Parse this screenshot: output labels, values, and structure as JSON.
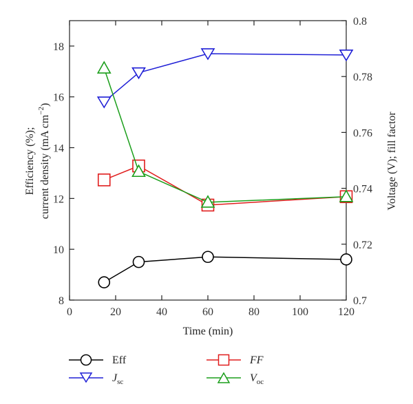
{
  "chart_data": {
    "type": "line",
    "xlabel": "Time (min)",
    "ylabel_left_line1": "Efficiency (%);",
    "ylabel_left_line2": "current density (mA cm",
    "ylabel_left_sup": "−2",
    "ylabel_left_close": ")",
    "ylabel_right": "Voltage (V); fill factor",
    "xlim": [
      0,
      120
    ],
    "ylim_left": [
      8,
      19
    ],
    "ylim_right": [
      0.7,
      0.8
    ],
    "x_ticks": [
      0,
      20,
      40,
      60,
      80,
      100,
      120
    ],
    "x_tick_labels": [
      "0",
      "20",
      "40",
      "60",
      "80",
      "100",
      "120"
    ],
    "y_left_ticks": [
      8,
      10,
      12,
      14,
      16,
      18
    ],
    "y_left_tick_labels": [
      "8",
      "10",
      "12",
      "14",
      "16",
      "18"
    ],
    "y_right_ticks": [
      0.7,
      0.72,
      0.74,
      0.76,
      0.78,
      0.8
    ],
    "y_right_tick_labels": [
      "0.7",
      "0.72",
      "0.74",
      "0.76",
      "0.78",
      "0.8"
    ],
    "grid": false,
    "legend_position": "bottom",
    "series": [
      {
        "key": "eff",
        "name": "Eff",
        "axis": "left",
        "color": "#000000",
        "marker": "circle",
        "x": [
          15,
          30,
          60,
          120
        ],
        "y": [
          8.7,
          9.5,
          9.7,
          9.6
        ]
      },
      {
        "key": "jsc",
        "name_main": "J",
        "name_sub": "sc",
        "axis": "left",
        "color": "#1f1fd6",
        "marker": "triangle-down",
        "x": [
          15,
          30,
          60,
          120
        ],
        "y": [
          15.8,
          16.95,
          17.7,
          17.65
        ]
      },
      {
        "key": "ff",
        "name": "FF",
        "axis": "right",
        "color": "#e01c1c",
        "marker": "square",
        "x": [
          15,
          30,
          60,
          120
        ],
        "y": [
          0.743,
          0.748,
          0.734,
          0.737
        ]
      },
      {
        "key": "voc",
        "name_main": "V",
        "name_sub": "oc",
        "axis": "right",
        "color": "#1a9e1a",
        "marker": "triangle-up",
        "x": [
          15,
          30,
          60,
          120
        ],
        "y": [
          0.783,
          0.746,
          0.735,
          0.737
        ]
      }
    ]
  }
}
